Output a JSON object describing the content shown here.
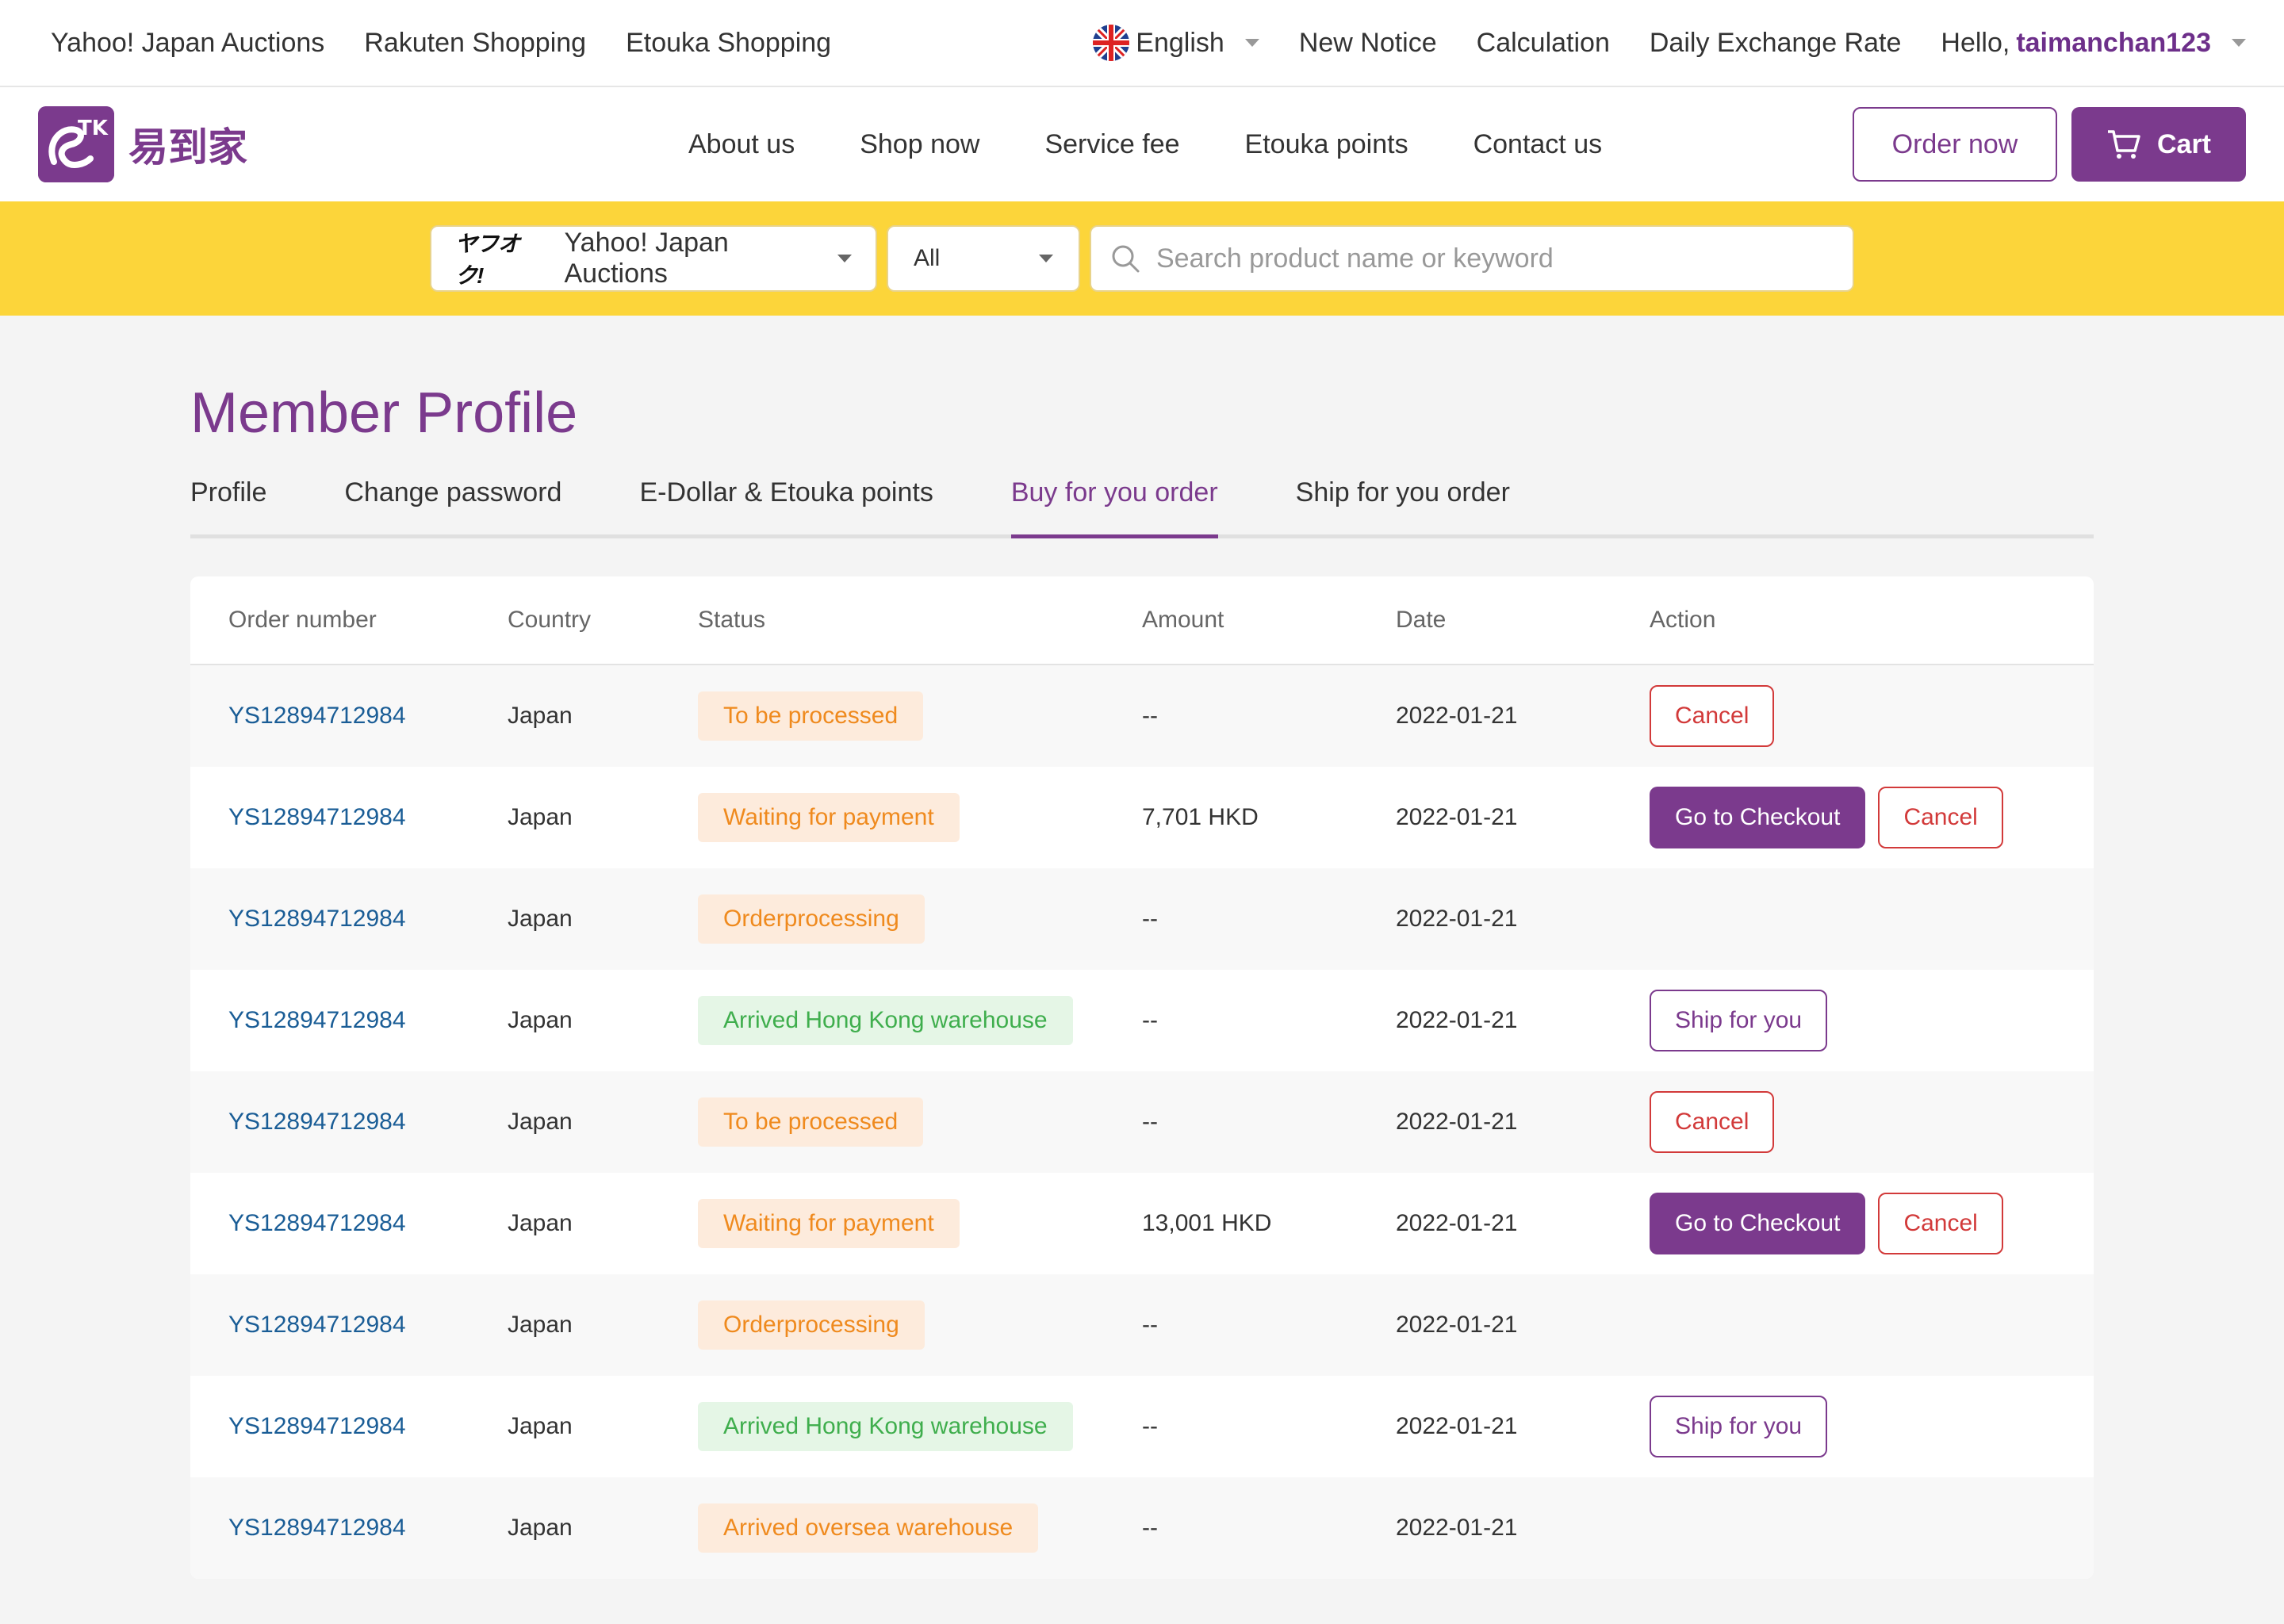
{
  "topbar": {
    "links": [
      "Yahoo! Japan Auctions",
      "Rakuten Shopping",
      "Etouka Shopping"
    ],
    "language": "English",
    "new_notice": "New Notice",
    "calculation": "Calculation",
    "daily_rate": "Daily Exchange Rate",
    "hello": "Hello,",
    "username": "taimanchan123"
  },
  "nav": {
    "logo_text": "易到家",
    "links": [
      "About us",
      "Shop now",
      "Service fee",
      "Etouka points",
      "Contact us"
    ],
    "order_now": "Order now",
    "cart": "Cart"
  },
  "search": {
    "site_logo": "ヤフオク!",
    "site": "Yahoo! Japan Auctions",
    "category": "All",
    "placeholder": "Search product name or keyword"
  },
  "page": {
    "title": "Member Profile",
    "tabs": [
      "Profile",
      "Change password",
      "E-Dollar & Etouka points",
      "Buy for you order",
      "Ship for you order"
    ],
    "active_tab": "Buy for you order"
  },
  "table": {
    "headers": [
      "Order number",
      "Country",
      "Status",
      "Amount",
      "Date",
      "Action"
    ],
    "rows": [
      {
        "order": "YS12894712984",
        "country": "Japan",
        "status": "To be processed",
        "status_color": "orange",
        "amount": "--",
        "date": "2022-01-21",
        "actions": [
          "Cancel"
        ]
      },
      {
        "order": "YS12894712984",
        "country": "Japan",
        "status": "Waiting for payment",
        "status_color": "orange",
        "amount": "7,701 HKD",
        "date": "2022-01-21",
        "actions": [
          "Go to Checkout",
          "Cancel"
        ]
      },
      {
        "order": "YS12894712984",
        "country": "Japan",
        "status": "Orderprocessing",
        "status_color": "orange",
        "amount": "--",
        "date": "2022-01-21",
        "actions": []
      },
      {
        "order": "YS12894712984",
        "country": "Japan",
        "status": "Arrived Hong Kong warehouse",
        "status_color": "green",
        "amount": "--",
        "date": "2022-01-21",
        "actions": [
          "Ship for you"
        ]
      },
      {
        "order": "YS12894712984",
        "country": "Japan",
        "status": "To be processed",
        "status_color": "orange",
        "amount": "--",
        "date": "2022-01-21",
        "actions": [
          "Cancel"
        ]
      },
      {
        "order": "YS12894712984",
        "country": "Japan",
        "status": "Waiting for payment",
        "status_color": "orange",
        "amount": "13,001 HKD",
        "date": "2022-01-21",
        "actions": [
          "Go to Checkout",
          "Cancel"
        ]
      },
      {
        "order": "YS12894712984",
        "country": "Japan",
        "status": "Orderprocessing",
        "status_color": "orange",
        "amount": "--",
        "date": "2022-01-21",
        "actions": []
      },
      {
        "order": "YS12894712984",
        "country": "Japan",
        "status": "Arrived Hong Kong warehouse",
        "status_color": "green",
        "amount": "--",
        "date": "2022-01-21",
        "actions": [
          "Ship for you"
        ]
      },
      {
        "order": "YS12894712984",
        "country": "Japan",
        "status": "Arrived oversea warehouse",
        "status_color": "orange",
        "amount": "--",
        "date": "2022-01-21",
        "actions": []
      }
    ]
  },
  "colors": {
    "brand": "#7b3a8d",
    "search_bar": "#fcd53a",
    "link": "#1a5d96",
    "danger": "#d23a3a"
  }
}
